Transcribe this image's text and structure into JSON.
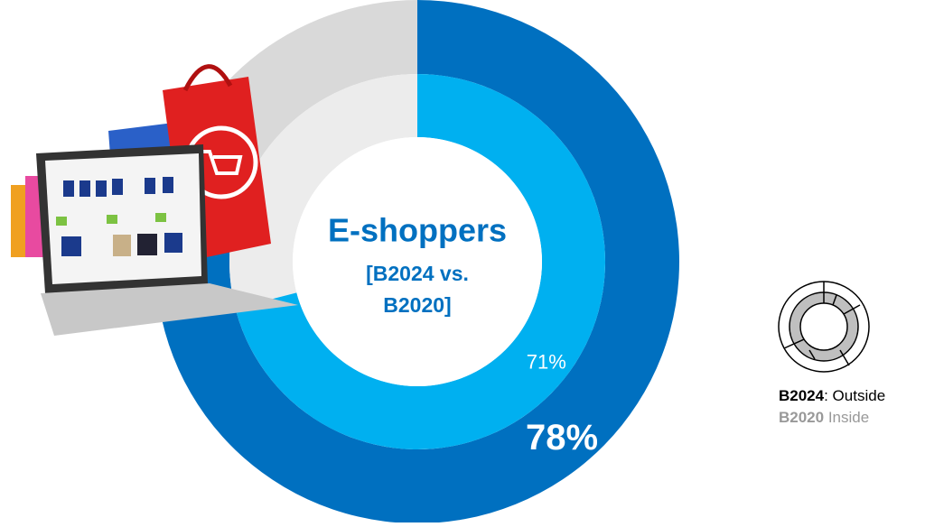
{
  "chart_data": {
    "type": "nested-donut",
    "title": "E-shoppers",
    "subtitle_lines": [
      "[B2024 vs.",
      "B2020]"
    ],
    "series": [
      {
        "name": "B2024",
        "color": "#0070c0",
        "rest_color": "#d9d9d9",
        "values": [
          78
        ],
        "value_labels": [
          "78%"
        ]
      },
      {
        "name": "B2020",
        "color": "#00b0f0",
        "rest_color": "#ececec",
        "values": [
          71
        ],
        "value_labels": [
          "71%"
        ]
      }
    ],
    "legend_notes": [
      ": Outside",
      " Inside"
    ],
    "legend": "right"
  }
}
